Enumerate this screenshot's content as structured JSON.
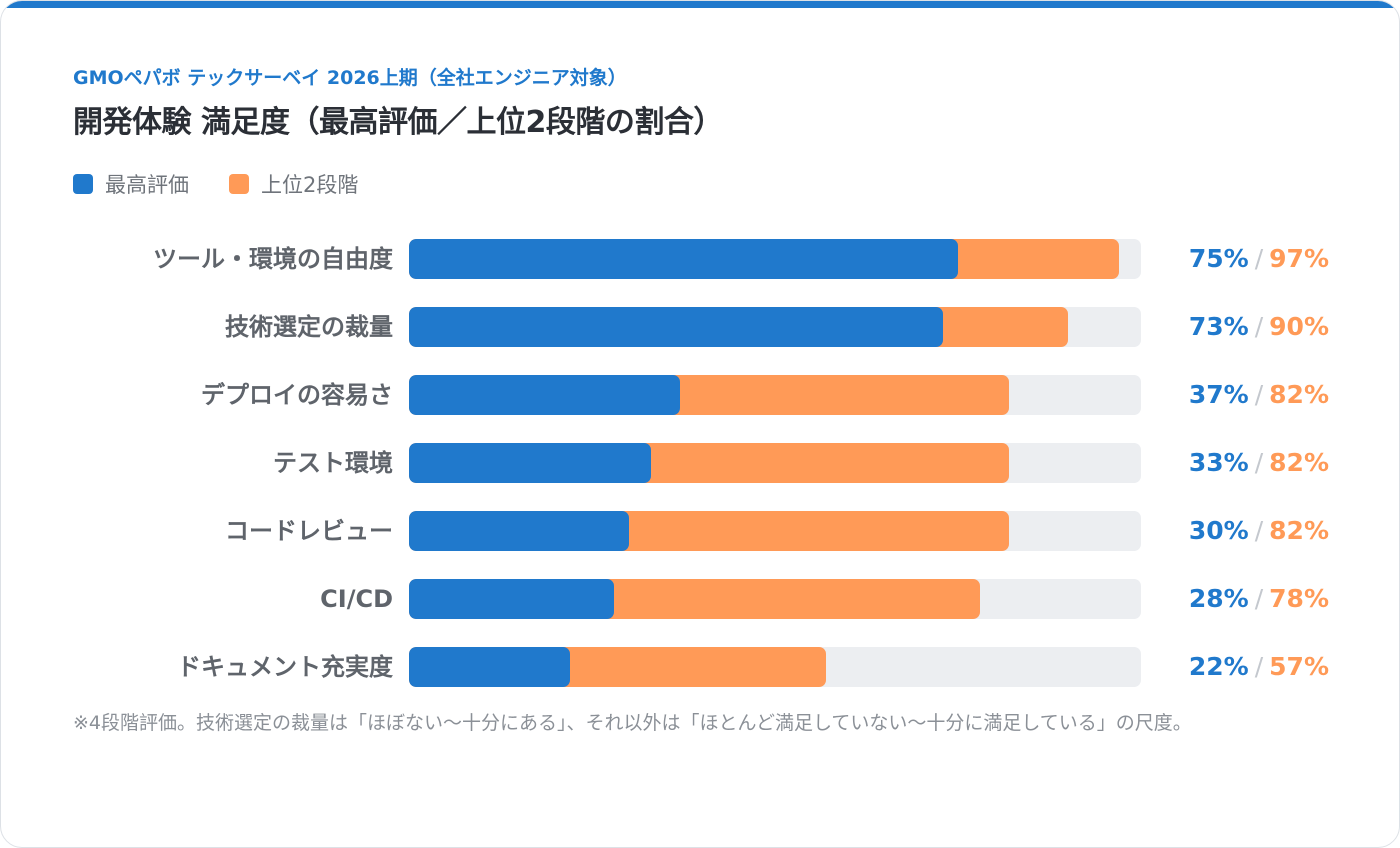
{
  "colors": {
    "top1": "#2079cc",
    "top2": "#ff9a57",
    "track": "#eceef1",
    "label": "#5f646b",
    "title": "#2b2f36",
    "accent": "#2079cc"
  },
  "header": {
    "subtitle": "GMOペパボ テックサーベイ 2026上期（全社エンジニア対象）",
    "title": "開発体験 満足度（最高評価／上位2段階の割合）"
  },
  "legend": {
    "top1_label": "最高評価",
    "top2_label": "上位2段階"
  },
  "chart_data": {
    "type": "bar",
    "orientation": "horizontal",
    "unit": "%",
    "xlim": [
      0,
      100
    ],
    "categories": [
      "ツール・環境の自由度",
      "技術選定の裁量",
      "デプロイの容易さ",
      "テスト環境",
      "コードレビュー",
      "CI/CD",
      "ドキュメント充実度"
    ],
    "series": [
      {
        "name": "最高評価",
        "values": [
          75,
          73,
          37,
          33,
          30,
          28,
          22
        ]
      },
      {
        "name": "上位2段階",
        "values": [
          97,
          90,
          82,
          82,
          82,
          78,
          57
        ]
      }
    ],
    "value_labels": [
      {
        "top1": "75%",
        "top2": "97%"
      },
      {
        "top1": "73%",
        "top2": "90%"
      },
      {
        "top1": "37%",
        "top2": "82%"
      },
      {
        "top1": "33%",
        "top2": "82%"
      },
      {
        "top1": "30%",
        "top2": "82%"
      },
      {
        "top1": "28%",
        "top2": "78%"
      },
      {
        "top1": "22%",
        "top2": "57%"
      }
    ],
    "separator": "/",
    "grid": false,
    "legend_position": "top-left"
  },
  "footnote": "※4段階評価。技術選定の裁量は「ほぼない〜十分にある」、それ以外は「ほとんど満足していない〜十分に満足している」の尺度。"
}
